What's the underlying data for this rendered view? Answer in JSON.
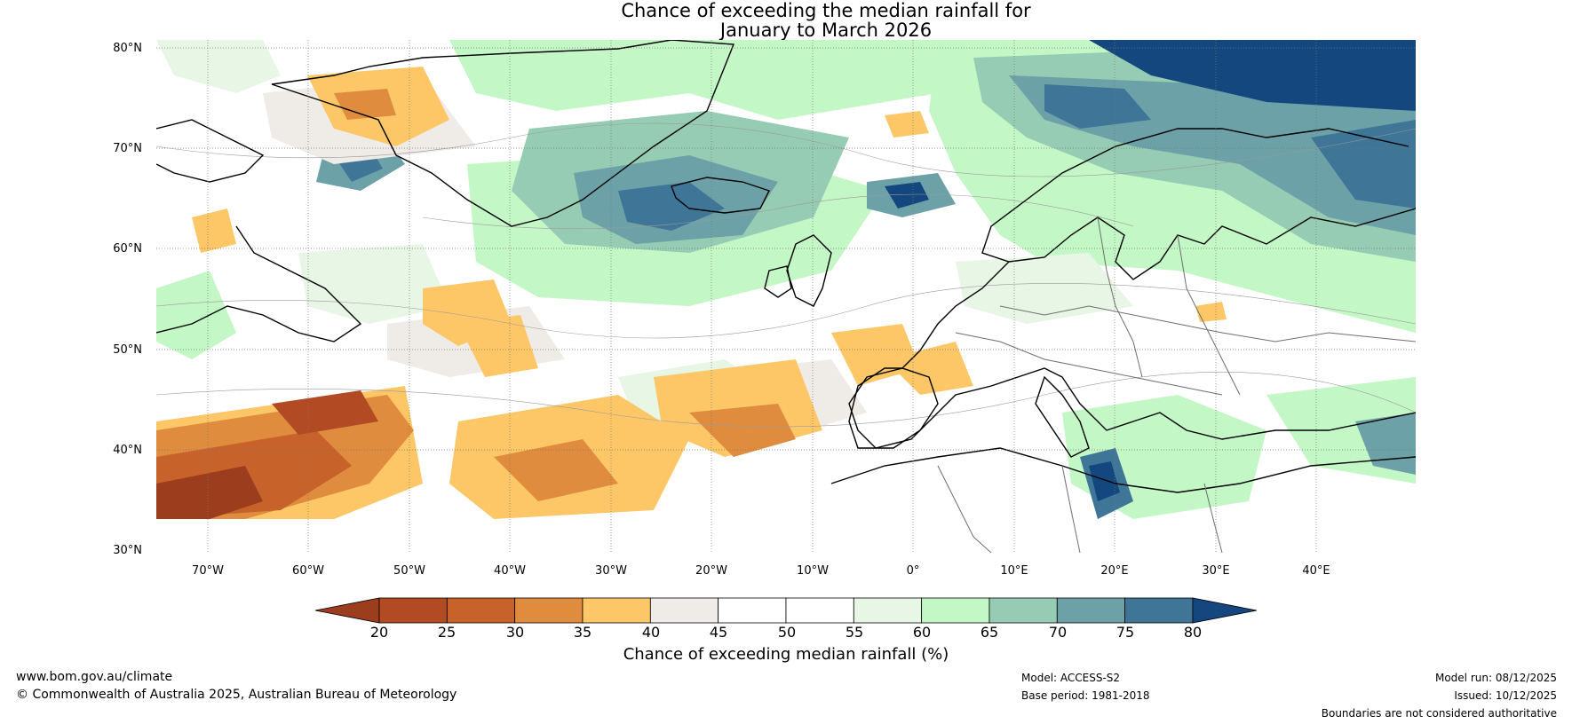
{
  "title": {
    "line1": "Chance of exceeding the median rainfall for",
    "line2": "January to March 2026"
  },
  "latitude_labels": [
    "80°N",
    "70°N",
    "60°N",
    "50°N",
    "40°N",
    "30°N"
  ],
  "longitude_labels": [
    "70°W",
    "60°W",
    "50°W",
    "40°W",
    "30°W",
    "20°W",
    "10°W",
    "0°",
    "10°E",
    "20°E",
    "30°E",
    "40°E"
  ],
  "colorbar": {
    "ticks": [
      "20",
      "25",
      "30",
      "35",
      "40",
      "45",
      "50",
      "55",
      "60",
      "65",
      "70",
      "75",
      "80"
    ],
    "colors": [
      "#9c3d1e",
      "#b24a24",
      "#c8622b",
      "#df8c3f",
      "#fdc767",
      "#efebe7",
      "#ffffff",
      "#ffffff",
      "#e8f6e6",
      "#c4f7c6",
      "#96ccb4",
      "#6da1a8",
      "#3f7698",
      "#13477e"
    ],
    "label": "Chance of exceeding median rainfall (%)"
  },
  "footer": {
    "website": "www.bom.gov.au/climate",
    "copyright": "© Commonwealth of Australia 2025, Australian Bureau of Meteorology",
    "model": "Model: ACCESS-S2",
    "base_period": "Base period: 1981-2018",
    "model_run": "Model run: 08/12/2025",
    "issued": "Issued: 10/12/2025",
    "disclaimer": "Boundaries are not considered authoritative"
  }
}
